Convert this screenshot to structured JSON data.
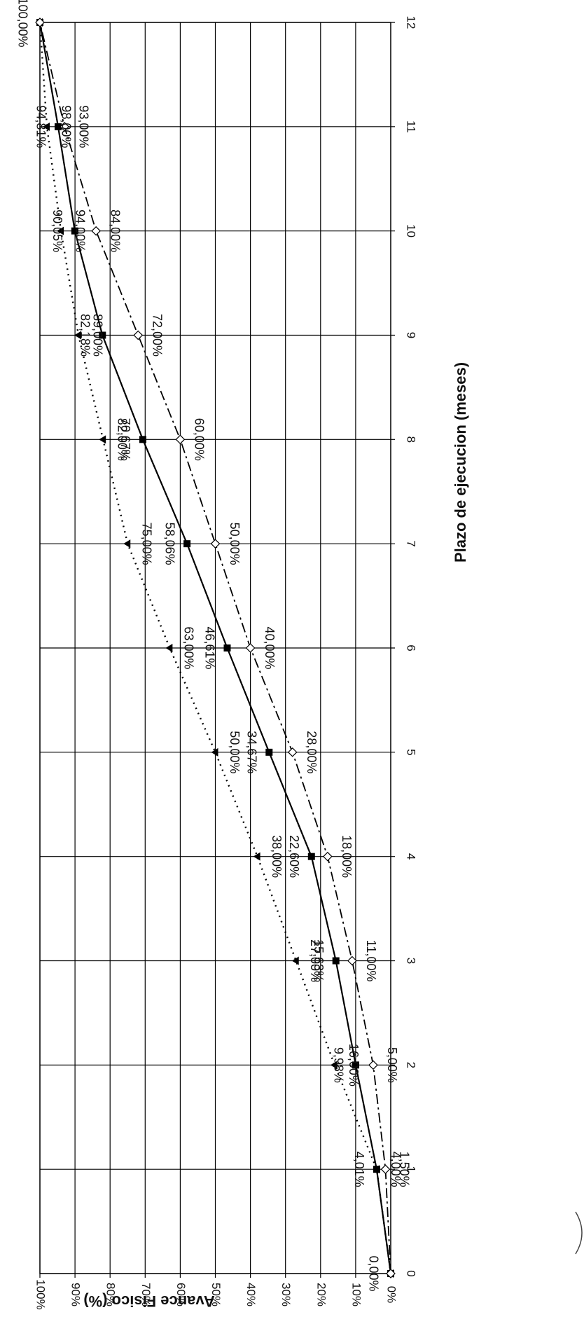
{
  "chart_data": {
    "type": "line",
    "xlabel": "Plazo de ejecucion (meses)",
    "ylabel": "Avance Fisico (%)",
    "x": [
      0,
      1,
      2,
      3,
      4,
      5,
      6,
      7,
      8,
      9,
      10,
      11,
      12
    ],
    "xlim": [
      0,
      12
    ],
    "ylim": [
      0,
      100
    ],
    "x_tick_labels": [
      "0",
      "1",
      "2",
      "3",
      "4",
      "5",
      "6",
      "7",
      "8",
      "9",
      "10",
      "11",
      "12"
    ],
    "y_tick_labels": [
      "0%",
      "10%",
      "20%",
      "30%",
      "40%",
      "50%",
      "60%",
      "70%",
      "80%",
      "90%",
      "100%"
    ],
    "grid": true,
    "rotation": "chart rotated 90 degrees clockwise",
    "series": [
      {
        "style": "solid",
        "marker": "square",
        "color": "#000000",
        "values": [
          0.0,
          4.01,
          9.98,
          15.63,
          22.6,
          34.67,
          46.61,
          58.06,
          70.67,
          82.18,
          90.05,
          94.81,
          100.0
        ],
        "labels": [
          "0,00%",
          "4,01%",
          "9,98%",
          "15,63%",
          "22,60%",
          "34,67%",
          "46,61%",
          "58,06%",
          "70,67%",
          "82,18%",
          "90,05%",
          "94,81%",
          "100,00%"
        ]
      },
      {
        "style": "dotted",
        "marker": "triangle",
        "color": "#000000",
        "values": [
          0.0,
          4.0,
          16.0,
          27.0,
          38.0,
          50.0,
          63.0,
          75.0,
          82.0,
          89.0,
          94.0,
          98.0,
          100.0
        ],
        "labels": [
          "",
          "4,00%",
          "16,00%",
          "27,00%",
          "38,00%",
          "50,00%",
          "63,00%",
          "75,00%",
          "82,00%",
          "89,00%",
          "94,00%",
          "98,00%",
          ""
        ]
      },
      {
        "style": "dash-dot",
        "marker": "diamond",
        "color": "#000000",
        "values": [
          0.0,
          1.5,
          5.0,
          11.0,
          18.0,
          28.0,
          40.0,
          50.0,
          60.0,
          72.0,
          84.0,
          93.0,
          100.0
        ],
        "labels": [
          "",
          "1,50%",
          "5,00%",
          "11,00%",
          "18,00%",
          "28,00%",
          "40,00%",
          "50,00%",
          "60,00%",
          "72,00%",
          "84,00%",
          "93,00%",
          ""
        ]
      }
    ]
  }
}
